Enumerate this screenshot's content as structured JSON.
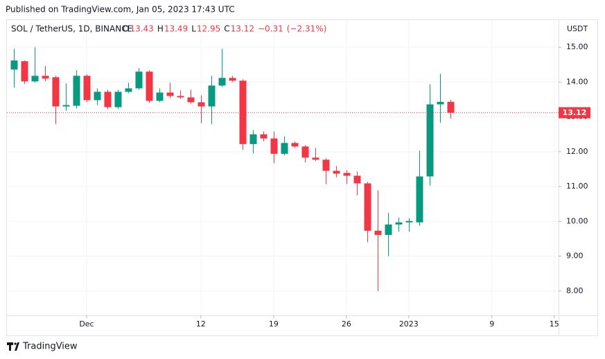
{
  "header": {
    "published": "Published on TradingView.com, Jan 05, 2023 17:43 UTC",
    "logo": "TradingView"
  },
  "chart_data": {
    "type": "candlestick",
    "symbol": "SOL / TetherUS, 1D, BINANCE",
    "ohlc_labels": [
      "O",
      "H",
      "L",
      "C"
    ],
    "change": {
      "value": -0.31,
      "label": "−0.31"
    },
    "change_pct": {
      "value": -2.31,
      "label": "(−2.31%)"
    },
    "axis_unit": "USDT",
    "up_color": "#089981",
    "down_color": "#f23645",
    "grid": true,
    "x": [
      "2022-11-24",
      "2022-11-25",
      "2022-11-26",
      "2022-11-27",
      "2022-11-28",
      "2022-11-29",
      "2022-11-30",
      "2022-12-01",
      "2022-12-02",
      "2022-12-03",
      "2022-12-04",
      "2022-12-05",
      "2022-12-06",
      "2022-12-07",
      "2022-12-08",
      "2022-12-09",
      "2022-12-10",
      "2022-12-11",
      "2022-12-12",
      "2022-12-13",
      "2022-12-14",
      "2022-12-15",
      "2022-12-16",
      "2022-12-17",
      "2022-12-18",
      "2022-12-19",
      "2022-12-20",
      "2022-12-21",
      "2022-12-22",
      "2022-12-23",
      "2022-12-24",
      "2022-12-25",
      "2022-12-26",
      "2022-12-27",
      "2022-12-28",
      "2022-12-29",
      "2022-12-30",
      "2022-12-31",
      "2023-01-01",
      "2023-01-02",
      "2023-01-03",
      "2023-01-04",
      "2023-01-05"
    ],
    "open": [
      14.36,
      14.6,
      14.02,
      14.18,
      14.14,
      13.3,
      13.32,
      14.18,
      13.48,
      13.72,
      13.28,
      13.72,
      13.82,
      14.3,
      13.46,
      13.7,
      13.6,
      13.56,
      13.42,
      13.3,
      13.9,
      14.12,
      14.04,
      12.22,
      12.5,
      12.38,
      11.94,
      12.25,
      12.15,
      11.83,
      11.77,
      11.45,
      11.39,
      11.31,
      11.09,
      9.73,
      9.61,
      9.91,
      9.97,
      9.97,
      11.29,
      13.36,
      13.43
    ],
    "high": [
      14.96,
      14.62,
      15.0,
      14.46,
      14.18,
      13.96,
      14.34,
      14.22,
      13.82,
      13.78,
      13.78,
      13.98,
      14.4,
      14.34,
      13.82,
      13.98,
      13.76,
      13.78,
      13.62,
      14.18,
      14.96,
      14.18,
      14.08,
      12.62,
      12.58,
      12.58,
      12.44,
      12.29,
      12.19,
      12.11,
      11.81,
      11.59,
      11.47,
      11.43,
      11.13,
      10.89,
      10.25,
      10.11,
      10.09,
      12.03,
      13.94,
      14.24,
      13.49
    ],
    "low": [
      13.84,
      13.94,
      13.98,
      14.02,
      12.79,
      13.18,
      13.24,
      13.42,
      13.34,
      13.22,
      13.24,
      13.68,
      13.78,
      13.4,
      13.42,
      13.54,
      13.52,
      13.38,
      12.82,
      12.79,
      13.86,
      14.0,
      12.05,
      11.95,
      12.3,
      11.67,
      11.89,
      12.11,
      11.69,
      11.73,
      11.07,
      11.27,
      11.07,
      10.75,
      9.4,
      8.0,
      9.0,
      9.7,
      9.7,
      9.87,
      11.03,
      12.83,
      12.95
    ],
    "close": [
      14.62,
      14.02,
      14.18,
      14.1,
      13.3,
      13.34,
      14.18,
      13.48,
      13.72,
      13.28,
      13.72,
      13.82,
      14.3,
      13.46,
      13.7,
      13.6,
      13.56,
      13.42,
      13.3,
      13.9,
      14.12,
      14.04,
      12.22,
      12.5,
      12.38,
      11.94,
      12.25,
      12.15,
      11.83,
      11.77,
      11.45,
      11.37,
      11.31,
      11.09,
      9.73,
      9.61,
      9.91,
      9.97,
      10.01,
      11.29,
      13.36,
      13.43,
      13.12
    ],
    "xlim": [
      "2022-11-23T08:00Z",
      "2023-01-15T10:00Z"
    ],
    "xticks": [
      {
        "value": "2022-12-01",
        "label": "Dec"
      },
      {
        "value": "2022-12-12",
        "label": "12"
      },
      {
        "value": "2022-12-19",
        "label": "19"
      },
      {
        "value": "2022-12-26",
        "label": "26"
      },
      {
        "value": "2023-01-01",
        "label": "2023"
      },
      {
        "value": "2023-01-09",
        "label": "9"
      },
      {
        "value": "2023-01-15",
        "label": "15"
      }
    ],
    "ylim": [
      7.3,
      15.78
    ],
    "yticks": [
      {
        "value": 8,
        "label": "8.00"
      },
      {
        "value": 9,
        "label": "9.00"
      },
      {
        "value": 10,
        "label": "10.00"
      },
      {
        "value": 11,
        "label": "11.00"
      },
      {
        "value": 12,
        "label": "12.00"
      },
      {
        "value": 13,
        "label": "13.00"
      },
      {
        "value": 14,
        "label": "14.00"
      },
      {
        "value": 15,
        "label": "15.00"
      }
    ]
  }
}
